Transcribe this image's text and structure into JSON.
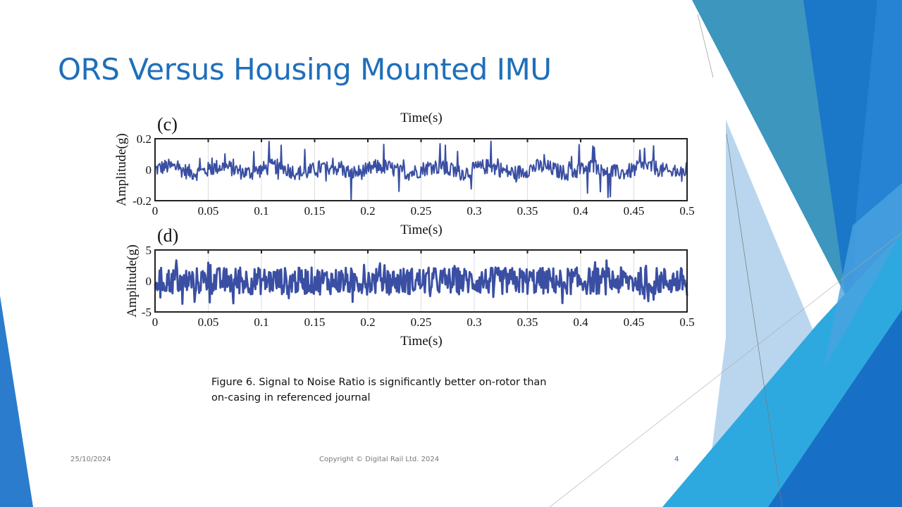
{
  "slide": {
    "title": "ORS Versus Housing Mounted IMU",
    "caption_line1": "Figure 6. Signal to Noise Ratio is significantly better on-rotor than",
    "caption_line2": "on-casing in referenced journal",
    "footer_date": "25/10/2024",
    "footer_copyright": "Copyright © Digital Rail Ltd. 2024",
    "page_number": "4",
    "colors": {
      "title": "#1f6fba",
      "signal": "#3a4fa3",
      "accent_blue": "#1b75c9",
      "teal": "#3a95bd",
      "light_blue": "#2ea9df"
    }
  },
  "chart_data": [
    {
      "type": "line",
      "panel_label": "(c)",
      "top_label": "Time(s)",
      "xlabel": "Time(s)",
      "ylabel": "Amplitude(g)",
      "xlim": [
        0,
        0.5
      ],
      "ylim": [
        -0.2,
        0.2
      ],
      "xticks": [
        "0",
        "0.05",
        "0.1",
        "0.15",
        "0.2",
        "0.25",
        "0.3",
        "0.35",
        "0.4",
        "0.45",
        "0.5"
      ],
      "yticks": [
        "-0.2",
        "0",
        "0.2"
      ],
      "grid": "vertical",
      "signal_baseline_range": [
        -0.05,
        0.05
      ],
      "signal_peak_range": [
        -0.18,
        0.17
      ]
    },
    {
      "type": "line",
      "panel_label": "(d)",
      "xlabel": "Time(s)",
      "ylabel": "Amplitude(g)",
      "xlim": [
        0,
        0.5
      ],
      "ylim": [
        -5,
        5
      ],
      "xticks": [
        "0",
        "0.05",
        "0.1",
        "0.15",
        "0.2",
        "0.25",
        "0.3",
        "0.35",
        "0.4",
        "0.45",
        "0.5"
      ],
      "yticks": [
        "-5",
        "0",
        "5"
      ],
      "grid": "vertical",
      "signal_baseline_range": [
        -2,
        2
      ],
      "signal_peak_range": [
        -3.7,
        3.5
      ]
    }
  ]
}
